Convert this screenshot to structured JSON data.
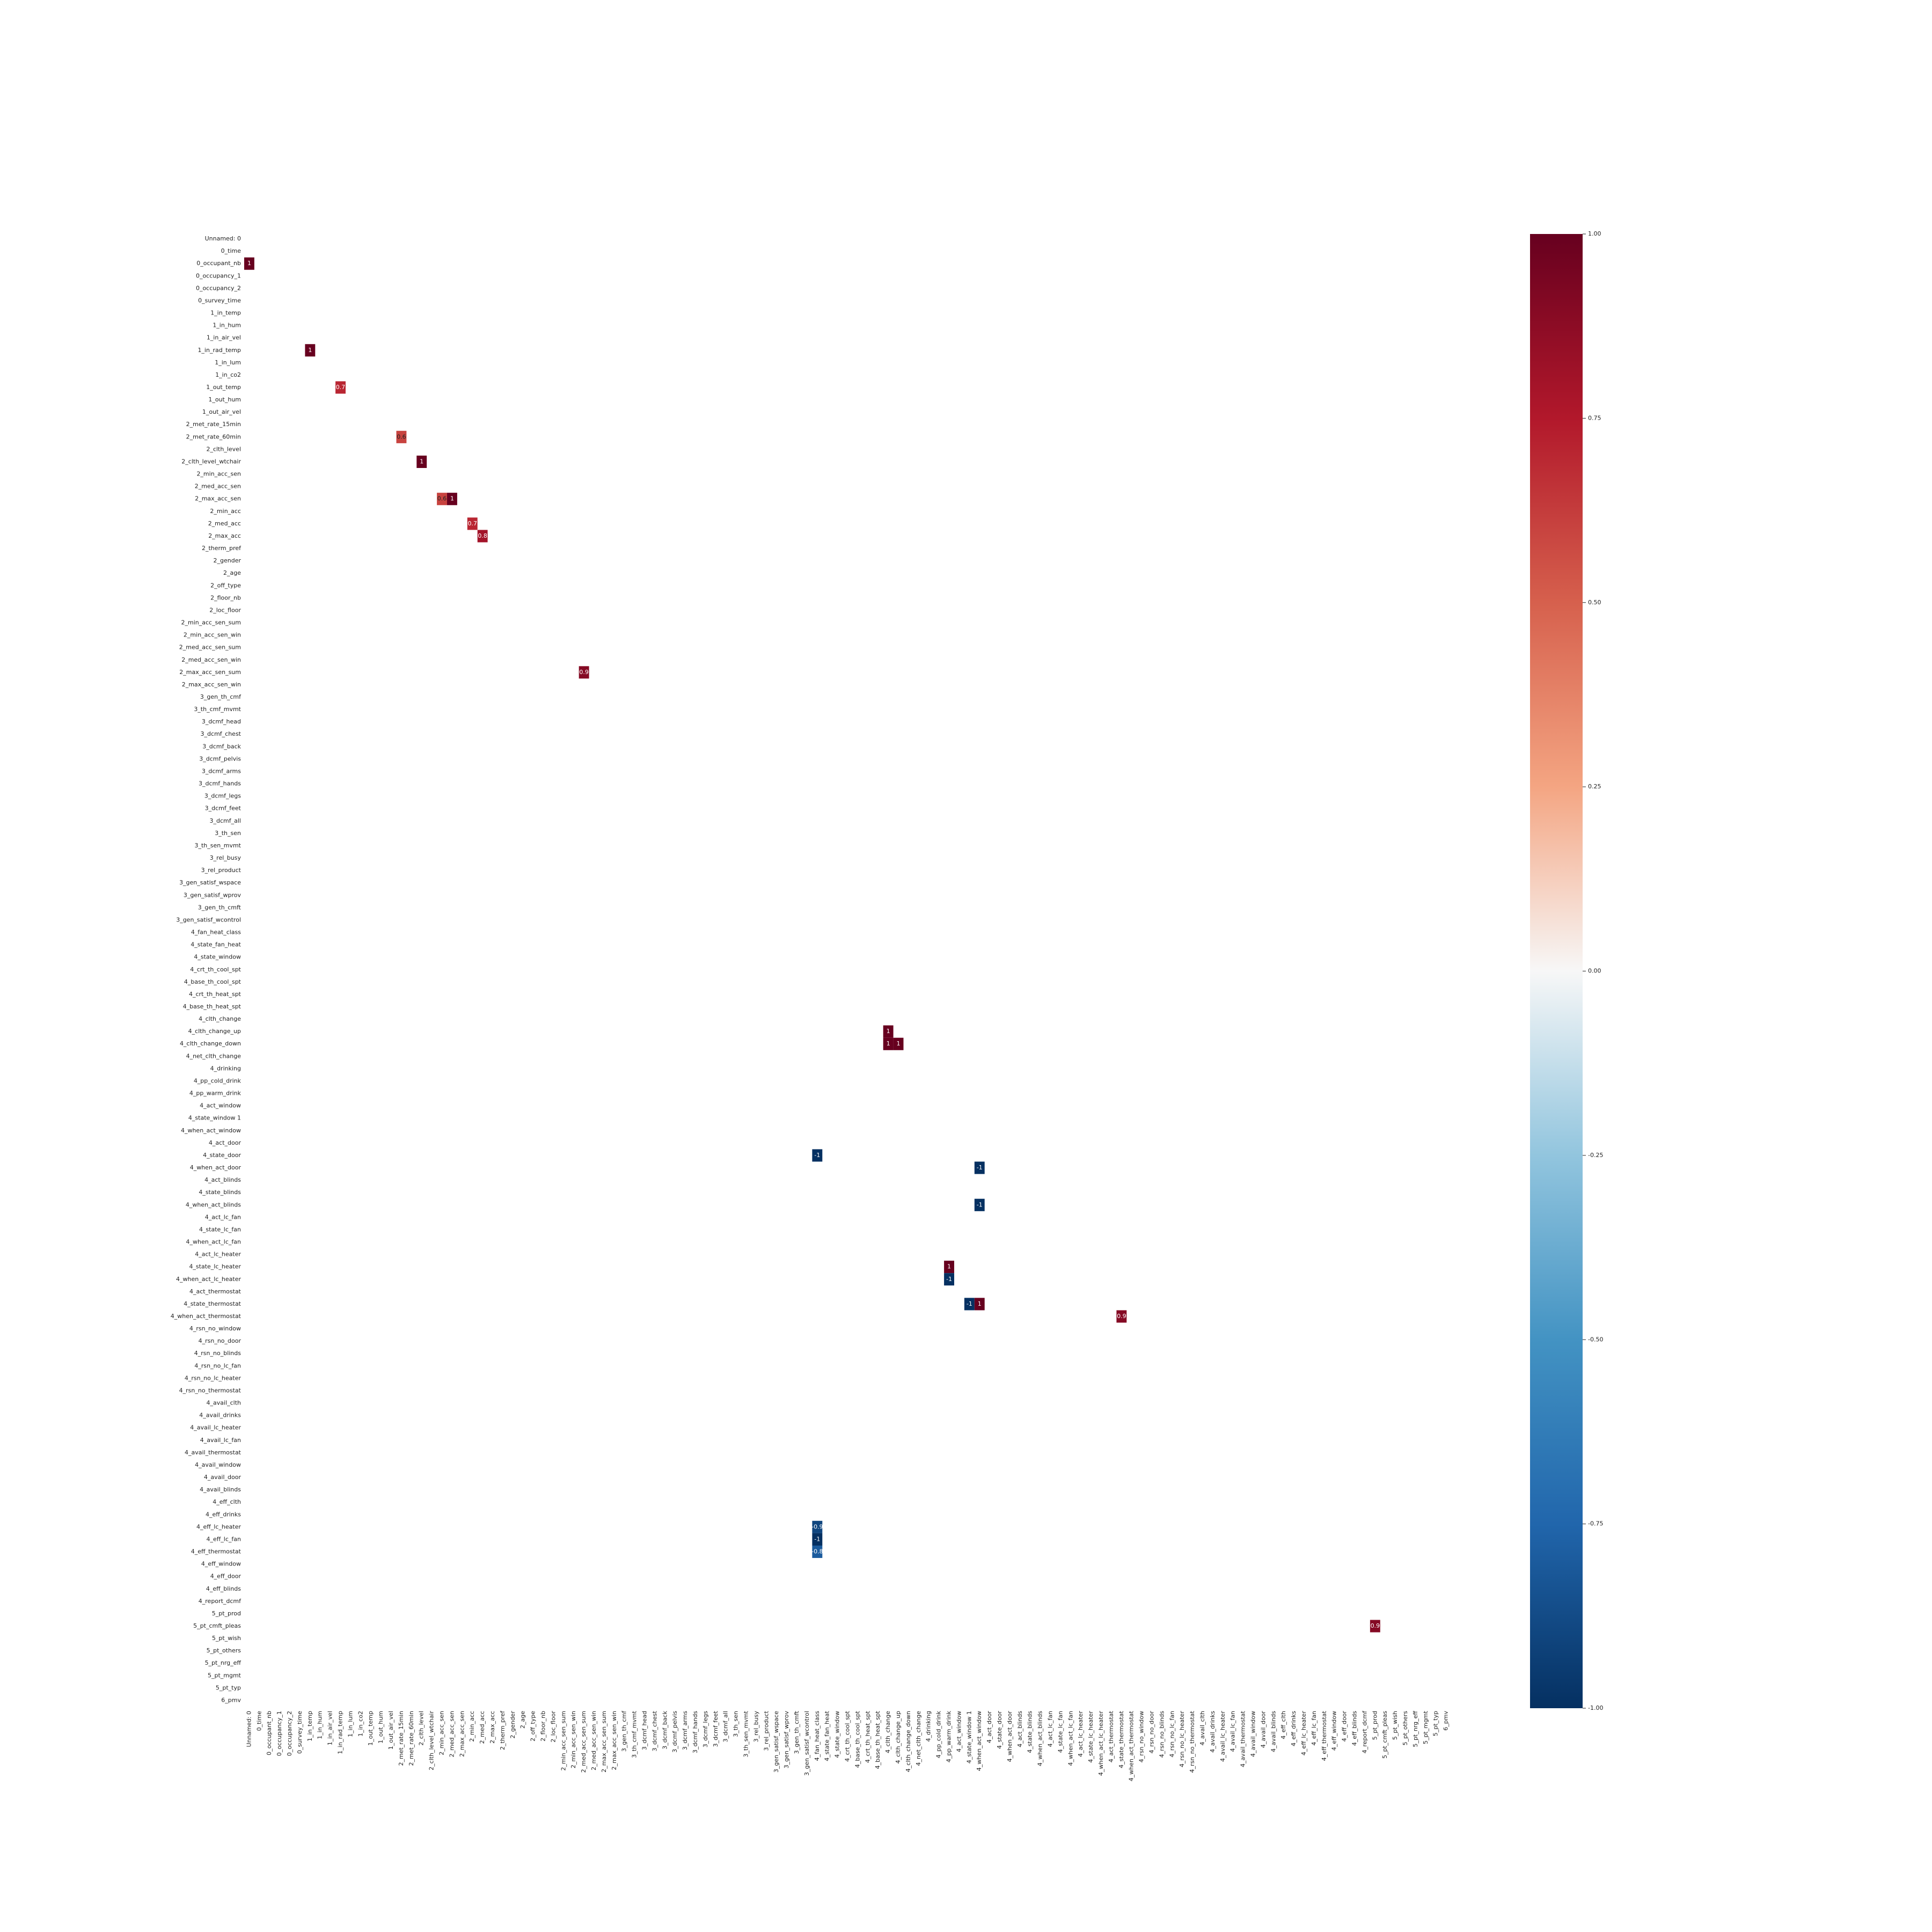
{
  "chart_data": {
    "type": "heatmap",
    "categories": [
      "Unnamed: 0",
      "0_time",
      "0_occupant_nb",
      "0_occupancy_1",
      "0_occupancy_2",
      "0_survey_time",
      "1_in_temp",
      "1_in_hum",
      "1_in_air_vel",
      "1_in_rad_temp",
      "1_in_lum",
      "1_in_co2",
      "1_out_temp",
      "1_out_hum",
      "1_out_air_vel",
      "2_met_rate_15min",
      "2_met_rate_60min",
      "2_clth_level",
      "2_clth_level_wtchair",
      "2_min_acc_sen",
      "2_med_acc_sen",
      "2_max_acc_sen",
      "2_min_acc",
      "2_med_acc",
      "2_max_acc",
      "2_therm_pref",
      "2_gender",
      "2_age",
      "2_off_type",
      "2_floor_nb",
      "2_loc_floor",
      "2_min_acc_sen_sum",
      "2_min_acc_sen_win",
      "2_med_acc_sen_sum",
      "2_med_acc_sen_win",
      "2_max_acc_sen_sum",
      "2_max_acc_sen_win",
      "3_gen_th_cmf",
      "3_th_cmf_mvmt",
      "3_dcmf_head",
      "3_dcmf_chest",
      "3_dcmf_back",
      "3_dcmf_pelvis",
      "3_dcmf_arms",
      "3_dcmf_hands",
      "3_dcmf_legs",
      "3_dcmf_feet",
      "3_dcmf_all",
      "3_th_sen",
      "3_th_sen_mvmt",
      "3_rel_busy",
      "3_rel_product",
      "3_gen_satisf_wspace",
      "3_gen_satisf_wprov",
      "3_gen_th_cmft",
      "3_gen_satisf_wcontrol",
      "4_fan_heat_class",
      "4_state_fan_heat",
      "4_state_window",
      "4_crt_th_cool_spt",
      "4_base_th_cool_spt",
      "4_crt_th_heat_spt",
      "4_base_th_heat_spt",
      "4_clth_change",
      "4_clth_change_up",
      "4_clth_change_down",
      "4_net_clth_change",
      "4_drinking",
      "4_pp_cold_drink",
      "4_pp_warm_drink",
      "4_act_window",
      "4_state_window 1",
      "4_when_act_window",
      "4_act_door",
      "4_state_door",
      "4_when_act_door",
      "4_act_blinds",
      "4_state_blinds",
      "4_when_act_blinds",
      "4_act_lc_fan",
      "4_state_lc_fan",
      "4_when_act_lc_fan",
      "4_act_lc_heater",
      "4_state_lc_heater",
      "4_when_act_lc_heater",
      "4_act_thermostat",
      "4_state_thermostat",
      "4_when_act_thermostat",
      "4_rsn_no_window",
      "4_rsn_no_door",
      "4_rsn_no_blinds",
      "4_rsn_no_lc_fan",
      "4_rsn_no_lc_heater",
      "4_rsn_no_thermostat",
      "4_avail_clth",
      "4_avail_drinks",
      "4_avail_lc_heater",
      "4_avail_lc_fan",
      "4_avail_thermostat",
      "4_avail_window",
      "4_avail_door",
      "4_avail_blinds",
      "4_eff_clth",
      "4_eff_drinks",
      "4_eff_lc_heater",
      "4_eff_lc_fan",
      "4_eff_thermostat",
      "4_eff_window",
      "4_eff_door",
      "4_eff_blinds",
      "4_report_dcmf",
      "5_pt_prod",
      "5_pt_cmft_pleas",
      "5_pt_wish",
      "5_pt_others",
      "5_pt_nrg_eff",
      "5_pt_mgmt",
      "5_pt_typ",
      "6_pmv"
    ],
    "cells": [
      {
        "x": "Unnamed: 0",
        "y": "0_occupant_nb",
        "value": 1
      },
      {
        "x": "1_in_temp",
        "y": "1_in_rad_temp",
        "value": 1
      },
      {
        "x": "1_in_rad_temp",
        "y": "1_out_temp",
        "value": 0.7
      },
      {
        "x": "2_met_rate_15min",
        "y": "2_met_rate_60min",
        "value": 0.6
      },
      {
        "x": "2_clth_level",
        "y": "2_clth_level_wtchair",
        "value": 1
      },
      {
        "x": "2_min_acc_sen",
        "y": "2_max_acc_sen",
        "value": 0.6
      },
      {
        "x": "2_med_acc_sen",
        "y": "2_max_acc_sen",
        "value": 1
      },
      {
        "x": "2_min_acc",
        "y": "2_med_acc",
        "value": 0.7
      },
      {
        "x": "2_med_acc",
        "y": "2_max_acc",
        "value": 0.8
      },
      {
        "x": "2_med_acc_sen_sum",
        "y": "2_max_acc_sen_sum",
        "value": 0.9
      },
      {
        "x": "4_clth_change",
        "y": "4_clth_change_up",
        "value": 1
      },
      {
        "x": "4_clth_change",
        "y": "4_clth_change_down",
        "value": 1
      },
      {
        "x": "4_clth_change_up",
        "y": "4_clth_change_down",
        "value": 1
      },
      {
        "x": "4_fan_heat_class",
        "y": "4_state_door",
        "value": -1
      },
      {
        "x": "4_when_act_window",
        "y": "4_when_act_door",
        "value": -1
      },
      {
        "x": "4_when_act_window",
        "y": "4_when_act_blinds",
        "value": -1
      },
      {
        "x": "4_pp_warm_drink",
        "y": "4_state_lc_heater",
        "value": 1
      },
      {
        "x": "4_pp_warm_drink",
        "y": "4_when_act_lc_heater",
        "value": -1
      },
      {
        "x": "4_state_window 1",
        "y": "4_state_thermostat",
        "value": -1
      },
      {
        "x": "4_when_act_window",
        "y": "4_state_thermostat",
        "value": 1
      },
      {
        "x": "4_state_thermostat",
        "y": "4_when_act_thermostat",
        "value": 0.9
      },
      {
        "x": "4_fan_heat_class",
        "y": "4_eff_lc_heater",
        "value": -0.9
      },
      {
        "x": "4_fan_heat_class",
        "y": "4_eff_lc_fan",
        "value": -1
      },
      {
        "x": "4_fan_heat_class",
        "y": "4_eff_thermostat",
        "value": -0.8
      },
      {
        "x": "5_pt_prod",
        "y": "5_pt_cmft_pleas",
        "value": 0.9
      }
    ],
    "colorbar_lim": [
      -1,
      1
    ],
    "colorbar_ticks": [
      {
        "value": 1,
        "label": "1.00"
      },
      {
        "value": 0.75,
        "label": "0.75"
      },
      {
        "value": 0.5,
        "label": "0.50"
      },
      {
        "value": 0.25,
        "label": "0.25"
      },
      {
        "value": 0,
        "label": "0.00"
      },
      {
        "value": -0.25,
        "label": "-0.25"
      },
      {
        "value": -0.5,
        "label": "-0.50"
      },
      {
        "value": -0.75,
        "label": "-0.75"
      },
      {
        "value": -1,
        "label": "-1.00"
      }
    ],
    "colormap": "RdBu_r"
  }
}
